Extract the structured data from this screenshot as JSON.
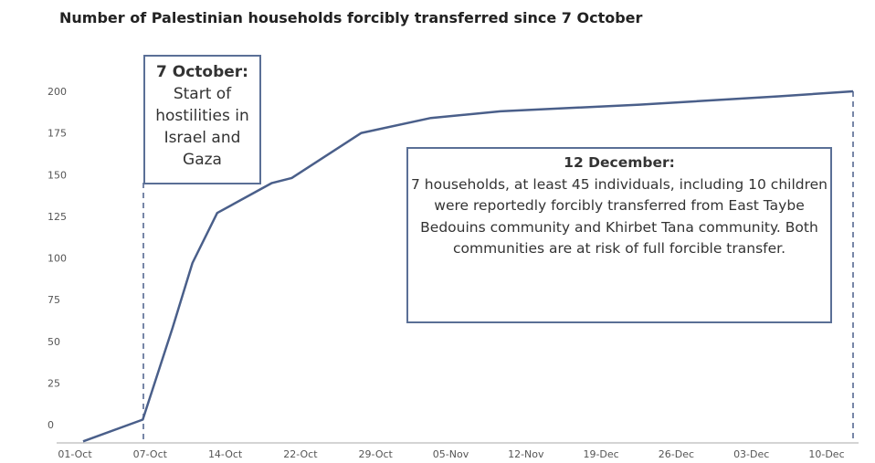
{
  "chart_data": {
    "type": "line",
    "title": "Number of Palestinian households forcibly transferred since 7 October",
    "xlabel": "",
    "ylabel": "",
    "ylim": [
      0,
      200
    ],
    "yticks": [
      "0",
      "25",
      "50",
      "75",
      "100",
      "125",
      "150",
      "175",
      "200"
    ],
    "xticks": [
      "01-Oct",
      "07-Oct",
      "14-Oct",
      "22-Oct",
      "29-Oct",
      "05-Nov",
      "12-Nov",
      "19-Dec",
      "26-Dec",
      "03-Dec",
      "10-Dec"
    ],
    "grid": false,
    "legend": "none",
    "series": [
      {
        "points": [
          {
            "x": 0,
            "y": -10
          },
          {
            "x": 6,
            "y": 3
          },
          {
            "x": 9,
            "y": 58
          },
          {
            "x": 11,
            "y": 97
          },
          {
            "x": 13.5,
            "y": 127
          },
          {
            "x": 19,
            "y": 145
          },
          {
            "x": 21,
            "y": 148
          },
          {
            "x": 28,
            "y": 175
          },
          {
            "x": 35,
            "y": 184
          },
          {
            "x": 42,
            "y": 188
          },
          {
            "x": 56,
            "y": 192
          },
          {
            "x": 70,
            "y": 197
          },
          {
            "x": 77.5,
            "y": 200
          }
        ]
      }
    ],
    "annotations": [
      {
        "date": "7 October",
        "title": "7 October:",
        "text": "Start of hostilities in Israel and Gaza"
      },
      {
        "date": "12 December",
        "title": "12 December:",
        "text": "7 households, at least 45 individuals, including 10 children were reportedly forcibly transferred from East Taybe Bedouins community and Khirbet Tana community. Both communities are at risk of full forcible transfer."
      }
    ],
    "colors": {
      "line": "#4a5f8a",
      "annotation_border": "#5a6f96"
    }
  }
}
